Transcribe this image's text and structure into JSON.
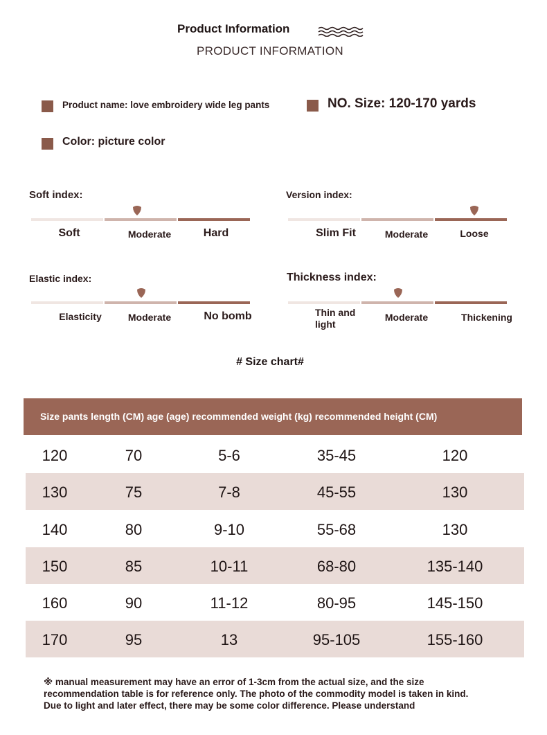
{
  "header": {
    "title": "Product Information",
    "subtitle": "PRODUCT INFORMATION"
  },
  "info": {
    "product_name": "Product name: love embroidery wide leg pants",
    "size": "NO. Size: 120-170 yards",
    "color": "Color: picture color"
  },
  "indices": {
    "soft": {
      "label": "Soft index:",
      "options": [
        "Soft",
        "Moderate",
        "Hard"
      ],
      "selected": 1
    },
    "version": {
      "label": "Version index:",
      "options": [
        "Slim Fit",
        "Moderate",
        "Loose"
      ],
      "selected": 2
    },
    "elastic": {
      "label": "Elastic index:",
      "options": [
        "Elasticity",
        "Moderate",
        "No bomb"
      ],
      "selected": 1
    },
    "thickness": {
      "label": "Thickness index:",
      "options": [
        "Thin and light",
        "Moderate",
        "Thickening"
      ],
      "selected": 1
    }
  },
  "size_chart": {
    "title": "# Size chart#",
    "header": "Size pants length (CM) age (age) recommended weight (kg) recommended height (CM)",
    "rows": [
      [
        "120",
        "70",
        "5-6",
        "35-45",
        "120"
      ],
      [
        "130",
        "75",
        "7-8",
        "45-55",
        "130"
      ],
      [
        "140",
        "80",
        "9-10",
        "55-68",
        "130"
      ],
      [
        "150",
        "85",
        "10-11",
        "68-80",
        "135-140"
      ],
      [
        "160",
        "90",
        "11-12",
        "80-95",
        "145-150"
      ],
      [
        "170",
        "95",
        "13",
        "95-105",
        "155-160"
      ]
    ]
  },
  "note": {
    "line1": "※ manual measurement may have an error of 1-3cm from the actual size, and the size",
    "line2": "recommendation table is for reference only. The photo of the commodity model is taken in kind.",
    "line3": "Due to light and later effect, there may be some color difference. Please understand"
  },
  "colors": {
    "accent": "#9a6656",
    "square": "#8a5a4a",
    "row_shade": "#e9dbd7",
    "bar_light": "#f0e6e2",
    "bar_mid": "#cfb4ac"
  }
}
